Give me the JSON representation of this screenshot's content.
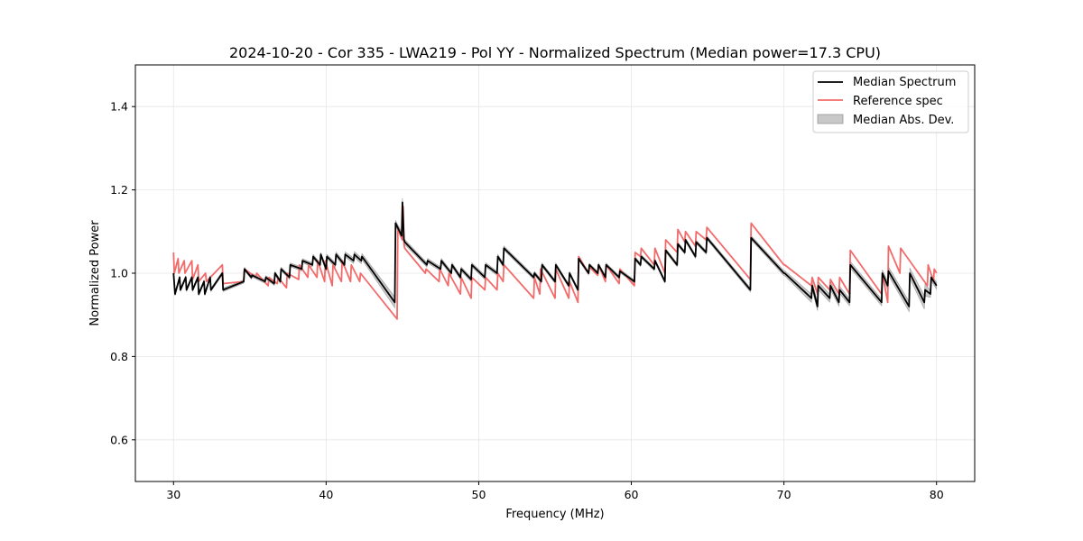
{
  "chart_data": {
    "type": "line",
    "title": "2024-10-20 - Cor 335 - LWA219 - Pol YY - Normalized Spectrum (Median power=17.3 CPU)",
    "xlabel": "Frequency (MHz)",
    "ylabel": "Normalized Power",
    "xlim": [
      27.5,
      82.5
    ],
    "ylim": [
      0.5,
      1.5
    ],
    "xticks": [
      30,
      40,
      50,
      60,
      70,
      80
    ],
    "xtick_labels": [
      "30",
      "40",
      "50",
      "60",
      "70",
      "80"
    ],
    "yticks": [
      0.6,
      0.8,
      1.0,
      1.2,
      1.4
    ],
    "ytick_labels": [
      "0.6",
      "0.8",
      "1.0",
      "1.2",
      "1.4"
    ],
    "grid": true,
    "legend_position": "top-right",
    "legend": [
      "Median Spectrum",
      "Reference spec",
      "Median Abs. Dev."
    ],
    "colors": {
      "median": "#000000",
      "reference": "#f26b6b",
      "mad": "#c8c8c8",
      "mad_edge": "#999999"
    },
    "series": [
      {
        "name": "Median Spectrum",
        "x": [
          30.0,
          30.1,
          30.4,
          30.45,
          30.8,
          30.85,
          31.2,
          31.25,
          31.6,
          31.65,
          32.0,
          32.05,
          32.4,
          32.45,
          33.2,
          33.25,
          34.6,
          34.65,
          35.1,
          35.15,
          36.0,
          36.05,
          36.6,
          36.65,
          37.0,
          37.05,
          37.6,
          37.65,
          38.4,
          38.45,
          39.1,
          39.15,
          39.6,
          39.65,
          40.0,
          40.05,
          40.6,
          40.65,
          41.2,
          41.25,
          41.8,
          41.85,
          42.3,
          42.35,
          44.5,
          44.55,
          44.95,
          45.0,
          45.1,
          45.15,
          46.6,
          46.65,
          47.5,
          47.55,
          48.2,
          48.25,
          48.8,
          48.85,
          49.5,
          49.55,
          50.4,
          50.45,
          51.2,
          51.25,
          51.6,
          51.65,
          53.6,
          53.65,
          54.1,
          54.15,
          55.0,
          55.05,
          55.9,
          55.95,
          56.5,
          56.55,
          57.2,
          57.25,
          57.8,
          57.85,
          58.3,
          58.35,
          59.2,
          59.25,
          60.2,
          60.25,
          60.6,
          60.65,
          61.5,
          61.55,
          62.2,
          62.25,
          63.0,
          63.05,
          63.5,
          63.55,
          64.2,
          64.25,
          64.9,
          64.95,
          67.8,
          67.85,
          70.0,
          70.05,
          71.8,
          71.85,
          72.2,
          72.25,
          73.0,
          73.05,
          73.6,
          73.65,
          74.3,
          74.35,
          76.4,
          76.45,
          76.8,
          76.85,
          78.2,
          78.25,
          79.2,
          79.25,
          79.6,
          79.65,
          80.0
        ],
        "values": [
          1.0,
          0.95,
          0.99,
          0.96,
          0.99,
          0.96,
          0.99,
          0.96,
          0.99,
          0.95,
          0.98,
          0.95,
          0.99,
          0.96,
          1.0,
          0.96,
          0.98,
          1.01,
          0.99,
          0.995,
          0.98,
          0.99,
          0.975,
          1.0,
          0.98,
          1.01,
          0.99,
          1.02,
          1.01,
          1.03,
          1.02,
          1.04,
          1.02,
          1.045,
          1.01,
          1.04,
          1.02,
          1.045,
          1.02,
          1.045,
          1.03,
          1.045,
          1.03,
          1.04,
          0.93,
          1.12,
          1.09,
          1.17,
          1.08,
          1.075,
          1.02,
          1.03,
          1.01,
          1.03,
          1.0,
          1.02,
          0.99,
          1.01,
          0.985,
          1.02,
          0.99,
          1.02,
          1.0,
          1.04,
          1.02,
          1.06,
          0.99,
          1.0,
          0.98,
          1.02,
          0.98,
          1.02,
          0.97,
          1.0,
          0.96,
          1.035,
          1.0,
          1.02,
          1.0,
          1.02,
          0.99,
          1.02,
          0.99,
          1.005,
          0.98,
          1.035,
          1.02,
          1.04,
          1.01,
          1.03,
          0.98,
          1.055,
          1.02,
          1.07,
          1.05,
          1.08,
          1.04,
          1.075,
          1.05,
          1.085,
          0.96,
          1.085,
          1.0,
          1.0,
          0.94,
          0.97,
          0.92,
          0.97,
          0.94,
          0.97,
          0.93,
          0.96,
          0.93,
          1.02,
          0.93,
          1.0,
          0.97,
          1.005,
          0.92,
          1.0,
          0.93,
          0.96,
          0.95,
          0.99,
          0.97
        ]
      },
      {
        "name": "Reference spec",
        "x": [
          30.0,
          30.05,
          30.3,
          30.35,
          30.7,
          30.75,
          31.2,
          31.25,
          31.6,
          31.65,
          32.1,
          32.15,
          33.2,
          33.25,
          34.6,
          34.65,
          35.4,
          35.45,
          36.2,
          36.25,
          36.8,
          36.85,
          37.4,
          37.45,
          38.2,
          38.25,
          38.8,
          38.85,
          39.4,
          39.45,
          39.9,
          39.95,
          40.4,
          40.45,
          41.0,
          41.05,
          41.6,
          41.65,
          42.2,
          42.25,
          44.65,
          44.7,
          45.0,
          45.05,
          45.1,
          45.15,
          46.5,
          46.55,
          47.4,
          47.45,
          48.0,
          48.05,
          48.8,
          48.85,
          49.5,
          49.55,
          50.4,
          50.45,
          51.2,
          51.25,
          51.6,
          51.65,
          53.6,
          53.65,
          54.0,
          54.05,
          55.0,
          55.05,
          55.9,
          55.95,
          56.5,
          56.55,
          57.2,
          57.25,
          57.8,
          57.85,
          58.3,
          58.35,
          59.2,
          59.25,
          60.2,
          60.25,
          60.6,
          60.65,
          61.5,
          61.55,
          62.2,
          62.25,
          63.0,
          63.05,
          63.5,
          63.55,
          64.2,
          64.25,
          64.9,
          64.95,
          67.8,
          67.85,
          70.0,
          70.05,
          71.8,
          71.85,
          72.2,
          72.25,
          73.0,
          73.05,
          73.6,
          73.65,
          74.3,
          74.35,
          76.4,
          76.45,
          76.8,
          76.85,
          77.6,
          77.65,
          79.4,
          79.45,
          79.8,
          79.85,
          80.0
        ],
        "values": [
          1.05,
          1.0,
          1.035,
          1.0,
          1.03,
          1.0,
          1.03,
          0.985,
          1.02,
          0.98,
          1.0,
          0.98,
          1.02,
          0.975,
          0.98,
          1.01,
          0.99,
          1.0,
          0.97,
          0.99,
          0.975,
          0.99,
          0.965,
          1.0,
          0.985,
          1.02,
          0.99,
          1.02,
          0.99,
          1.03,
          0.98,
          1.03,
          0.97,
          1.02,
          0.98,
          1.03,
          0.98,
          1.02,
          0.98,
          1.0,
          0.89,
          1.11,
          1.08,
          1.16,
          1.07,
          1.06,
          1.0,
          1.01,
          0.98,
          1.01,
          0.97,
          1.0,
          0.95,
          0.99,
          0.94,
          0.99,
          0.96,
          0.99,
          0.96,
          1.0,
          0.98,
          1.02,
          0.94,
          0.99,
          0.95,
          1.01,
          0.94,
          1.01,
          0.94,
          0.98,
          0.93,
          1.04,
          1.0,
          1.015,
          0.995,
          1.02,
          0.98,
          1.02,
          0.975,
          1.01,
          0.97,
          1.05,
          1.04,
          1.06,
          1.02,
          1.06,
          1.0,
          1.08,
          1.05,
          1.105,
          1.075,
          1.1,
          1.065,
          1.1,
          1.08,
          1.11,
          0.985,
          1.12,
          1.02,
          1.02,
          0.97,
          0.99,
          0.95,
          0.99,
          0.96,
          0.985,
          0.95,
          0.99,
          0.95,
          1.055,
          0.95,
          1.0,
          0.93,
          1.065,
          1.0,
          1.06,
          0.97,
          1.02,
          0.98,
          1.01,
          1.0
        ]
      }
    ],
    "mad_band": {
      "name": "Median Abs. Dev.",
      "x": [
        30.0,
        35.0,
        40.0,
        42.3,
        43.5,
        44.5,
        44.55,
        45.0,
        45.05,
        45.1,
        48.0,
        52.0,
        56.0,
        60.0,
        64.0,
        68.0,
        70.0,
        71.8,
        72.2,
        74.3,
        76.4,
        76.8,
        78.2,
        79.2,
        79.6,
        80.0
      ],
      "half_width": [
        0.004,
        0.004,
        0.005,
        0.007,
        0.01,
        0.013,
        0.006,
        0.01,
        0.016,
        0.006,
        0.005,
        0.005,
        0.004,
        0.004,
        0.004,
        0.005,
        0.006,
        0.01,
        0.01,
        0.008,
        0.008,
        0.01,
        0.012,
        0.016,
        0.008,
        0.008
      ]
    }
  }
}
